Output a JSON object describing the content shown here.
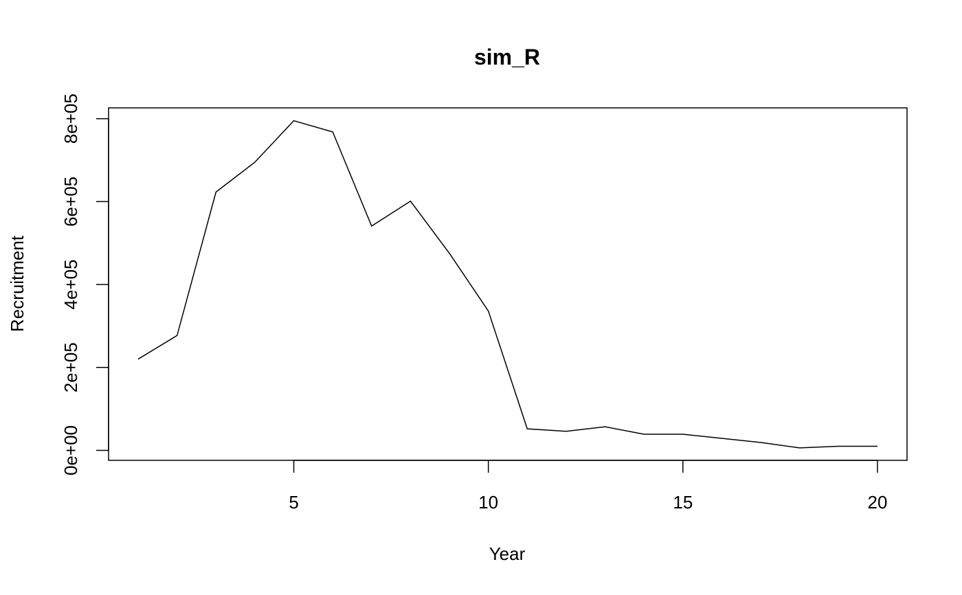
{
  "chart_data": {
    "type": "line",
    "title": "sim_R",
    "xlabel": "Year",
    "ylabel": "Recruitment",
    "xlim": [
      0.24,
      20.76
    ],
    "ylim": [
      -24000,
      826000
    ],
    "x_ticks": [
      5,
      10,
      15,
      20
    ],
    "x_tick_labels": [
      "5",
      "10",
      "15",
      "20"
    ],
    "y_ticks": [
      0,
      200000,
      400000,
      600000,
      800000
    ],
    "y_tick_labels": [
      "0e+00",
      "2e+05",
      "4e+05",
      "6e+05",
      "8e+05"
    ],
    "grid": false,
    "legend": "none",
    "line_color": "#000000",
    "series": [
      {
        "x": [
          1,
          2,
          3,
          4,
          5,
          6,
          7,
          8,
          9,
          10,
          11,
          12,
          13,
          14,
          15,
          16,
          17,
          18,
          19,
          20
        ],
        "values": [
          220000,
          277000,
          623000,
          695000,
          795000,
          768000,
          541000,
          601000,
          475000,
          336000,
          52000,
          46000,
          57000,
          39000,
          39000,
          29000,
          19000,
          6000,
          10000,
          10000
        ]
      }
    ]
  }
}
